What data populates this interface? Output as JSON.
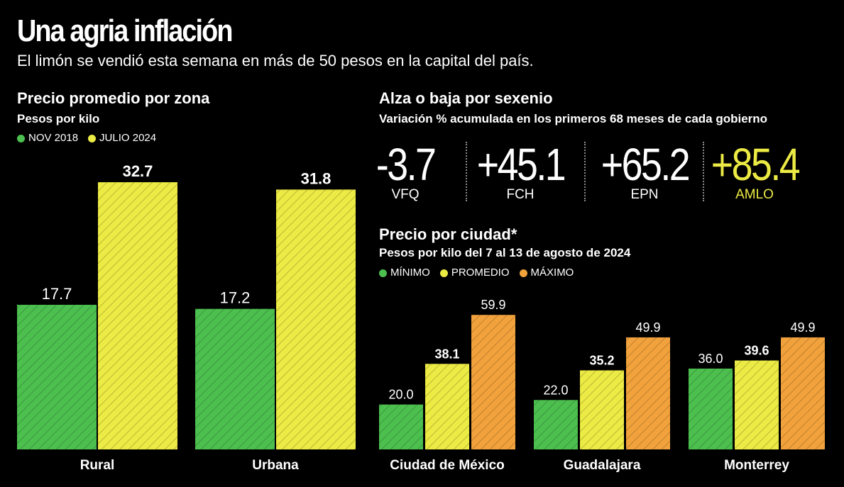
{
  "header": {
    "title": "Una agria inflación",
    "subtitle": "El limón se vendió esta semana en más de 50 pesos en la capital del país."
  },
  "zona": {
    "title": "Precio promedio por zona",
    "units": "Pesos por kilo",
    "legend": [
      {
        "label": "NOV 2018",
        "color": "#4cbf4f"
      },
      {
        "label": "JULIO 2024",
        "color": "#ecea44"
      }
    ]
  },
  "sexenio": {
    "title": "Alza o baja por sexenio",
    "subtitle": "Variación % acumulada en los primeros 68 meses de cada gobierno",
    "items": [
      {
        "value": "-3.7",
        "label": "VFQ",
        "color": "#ffffff"
      },
      {
        "value": "+45.1",
        "label": "FCH",
        "color": "#ffffff"
      },
      {
        "value": "+65.2",
        "label": "EPN",
        "color": "#ffffff"
      },
      {
        "value": "+85.4",
        "label": "AMLO",
        "color": "#ecea44"
      }
    ]
  },
  "ciudad": {
    "title": "Precio por ciudad*",
    "units": "Pesos por kilo del 7 al 13 de agosto de 2024",
    "legend": [
      {
        "label": "MÍNIMO",
        "color": "#4cbf4f"
      },
      {
        "label": "PROMEDIO",
        "color": "#ecea44"
      },
      {
        "label": "MÁXIMO",
        "color": "#f2a23c"
      }
    ]
  },
  "chart_data": [
    {
      "type": "bar",
      "title": "Precio promedio por zona",
      "ylabel": "Pesos por kilo",
      "categories": [
        "Rural",
        "Urbana"
      ],
      "series": [
        {
          "name": "NOV 2018",
          "values": [
            17.7,
            17.2
          ],
          "labels": [
            "17.7",
            "17.2"
          ],
          "color": "#4cbf4f",
          "bold": false
        },
        {
          "name": "JULIO 2024",
          "values": [
            32.7,
            31.8
          ],
          "labels": [
            "32.7",
            "31.8"
          ],
          "color": "#ecea44",
          "bold": true
        }
      ],
      "ylim": [
        0,
        34.7
      ]
    },
    {
      "type": "bar",
      "title": "Precio por ciudad*",
      "ylabel": "Pesos por kilo del 7 al 13 de agosto de 2024",
      "categories": [
        "Ciudad de México",
        "Guadalajara",
        "Monterrey"
      ],
      "series": [
        {
          "name": "MÍNIMO",
          "values": [
            20.0,
            22.0,
            36.0
          ],
          "labels": [
            "20.0",
            "22.0",
            "36.0"
          ],
          "color": "#4cbf4f",
          "bold": false
        },
        {
          "name": "PROMEDIO",
          "values": [
            38.1,
            35.2,
            39.6
          ],
          "labels": [
            "38.1",
            "35.2",
            "39.6"
          ],
          "color": "#ecea44",
          "bold": true
        },
        {
          "name": "MÁXIMO",
          "values": [
            59.9,
            49.9,
            49.9
          ],
          "labels": [
            "59.9",
            "49.9",
            "49.9"
          ],
          "color": "#f2a23c",
          "bold": false
        }
      ],
      "ylim": [
        0,
        62.5
      ]
    }
  ]
}
